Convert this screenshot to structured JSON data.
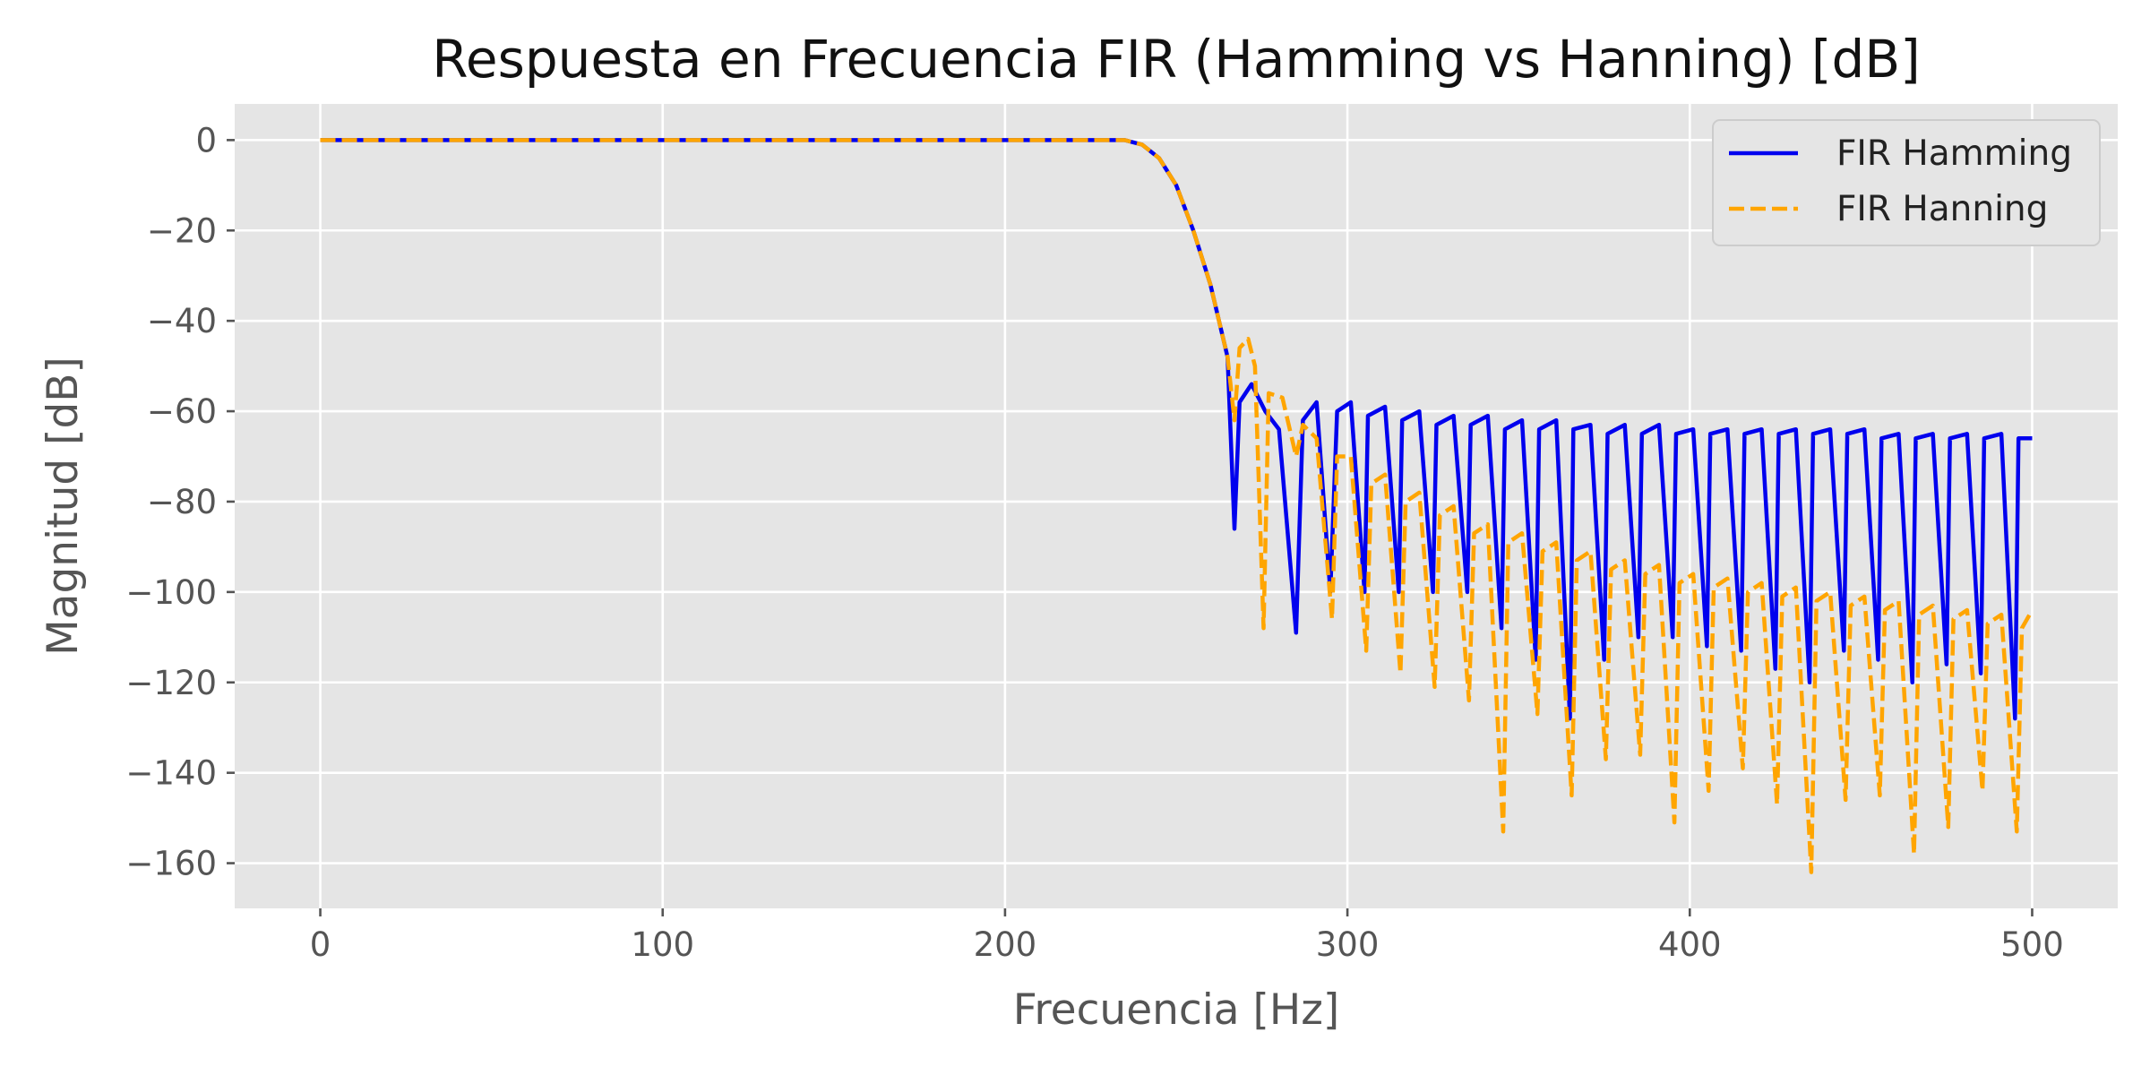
{
  "chart_data": {
    "type": "line",
    "title": "Respuesta en Frecuencia FIR (Hamming vs Hanning) [dB]",
    "xlabel": "Frecuencia [Hz]",
    "ylabel": "Magnitud [dB]",
    "xlim": [
      -25,
      525
    ],
    "ylim": [
      -170,
      8
    ],
    "xticks": [
      0,
      100,
      200,
      300,
      400,
      500
    ],
    "yticks": [
      0,
      -20,
      -40,
      -60,
      -80,
      -100,
      -120,
      -140,
      -160
    ],
    "xtick_labels": [
      "0",
      "100",
      "200",
      "300",
      "400",
      "500"
    ],
    "ytick_labels": [
      "0",
      "−20",
      "−40",
      "−60",
      "−80",
      "−100",
      "−120",
      "−140",
      "−160"
    ],
    "grid": true,
    "legend_position": "top-right",
    "background": "#e5e5e5",
    "series": [
      {
        "name": "FIR Hamming",
        "color": "#0000ee",
        "style": "solid",
        "x": [
          0,
          235,
          240,
          245,
          250,
          255,
          260,
          265,
          267,
          268.5,
          272,
          276,
          280,
          285,
          287,
          291,
          295,
          297,
          301,
          305,
          306,
          311,
          315,
          316,
          321,
          325,
          326,
          331,
          335,
          336,
          341,
          345,
          346,
          351,
          355,
          356,
          361,
          365,
          366,
          371,
          375,
          376,
          381,
          385,
          386,
          391,
          395,
          396,
          401,
          405,
          406,
          411,
          415,
          416,
          421,
          425,
          426,
          431,
          435,
          436,
          441,
          445,
          446,
          451,
          455,
          456,
          461,
          465,
          466,
          471,
          475,
          476,
          481,
          485,
          486,
          491,
          495,
          496,
          500
        ],
        "y": [
          0,
          0,
          -1,
          -4,
          -10,
          -20,
          -32,
          -48,
          -86,
          -58,
          -54,
          -60,
          -64,
          -109,
          -62,
          -58,
          -100,
          -60,
          -58,
          -100,
          -61,
          -59,
          -100,
          -62,
          -60,
          -100,
          -63,
          -61,
          -100,
          -63,
          -61,
          -108,
          -64,
          -62,
          -115,
          -64,
          -62,
          -128,
          -64,
          -63,
          -115,
          -65,
          -63,
          -110,
          -65,
          -63,
          -110,
          -65,
          -64,
          -112,
          -65,
          -64,
          -113,
          -65,
          -64,
          -117,
          -65,
          -64,
          -120,
          -65,
          -64,
          -113,
          -65,
          -64,
          -115,
          -66,
          -65,
          -120,
          -66,
          -65,
          -116,
          -66,
          -65,
          -118,
          -66,
          -65,
          -128,
          -66,
          -66
        ]
      },
      {
        "name": "FIR Hanning",
        "color": "#ffa500",
        "style": "dashed",
        "x": [
          0,
          235,
          240,
          245,
          250,
          255,
          260,
          265,
          267,
          268.5,
          271,
          273,
          275.5,
          277,
          281,
          285,
          287,
          291,
          295.5,
          297,
          301,
          305.5,
          307,
          311,
          315.5,
          317,
          321,
          325.5,
          327,
          331,
          335.5,
          337,
          341,
          345.5,
          347,
          351,
          355.5,
          357,
          361,
          365.5,
          367,
          371,
          375.5,
          377,
          381,
          385.5,
          387,
          391,
          395.5,
          397,
          401,
          405.5,
          407,
          411,
          415.5,
          417,
          421,
          425.5,
          427,
          431,
          435.5,
          437,
          441,
          445.5,
          447,
          451,
          455.5,
          457,
          461,
          465.5,
          467,
          471,
          475.5,
          477,
          481,
          485.5,
          487,
          491,
          495.5,
          497,
          500
        ],
        "y": [
          0,
          0,
          -1,
          -4,
          -10,
          -20,
          -32,
          -48,
          -62,
          -46,
          -44,
          -50,
          -108,
          -56,
          -57,
          -70,
          -63,
          -66,
          -106,
          -70,
          -70,
          -113,
          -76,
          -74,
          -118,
          -80,
          -78,
          -121,
          -83,
          -81,
          -124,
          -87,
          -85,
          -153,
          -89,
          -87,
          -127,
          -91,
          -89,
          -145,
          -93,
          -91,
          -137,
          -95,
          -93,
          -136,
          -96,
          -94,
          -151,
          -98,
          -96,
          -144,
          -99,
          -97,
          -139,
          -100,
          -98,
          -147,
          -101,
          -99,
          -162,
          -102,
          -100,
          -146,
          -103,
          -101,
          -145,
          -104,
          -102,
          -158,
          -105,
          -103,
          -152,
          -106,
          -104,
          -144,
          -107,
          -105,
          -153,
          -108,
          -104
        ]
      }
    ]
  }
}
